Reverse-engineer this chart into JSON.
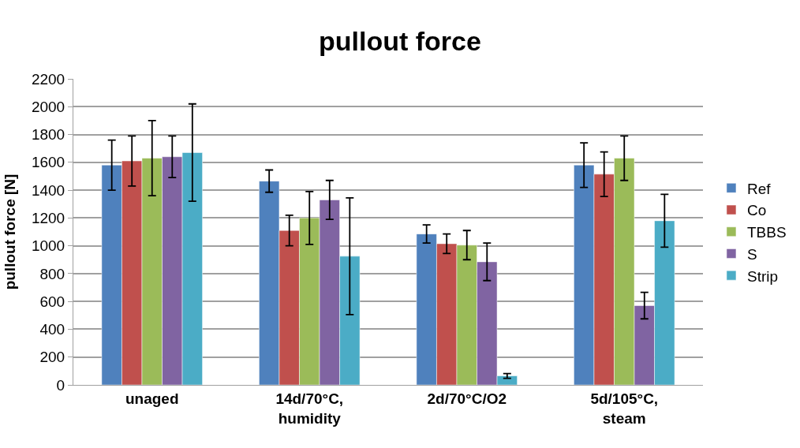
{
  "chart_data": {
    "type": "bar",
    "title": "pullout force",
    "ylabel": "pullout force [N]",
    "categories": [
      "unaged",
      "14d/70°C,\nhumidity",
      "2d/70°C/O2",
      "5d/105°C,\nsteam"
    ],
    "series": [
      {
        "name": "Ref",
        "color": "#4f81bd",
        "values": [
          1580,
          1465,
          1085,
          1580
        ],
        "errors": [
          180,
          80,
          65,
          160
        ]
      },
      {
        "name": "Co",
        "color": "#c0504d",
        "values": [
          1610,
          1110,
          1015,
          1515
        ],
        "errors": [
          180,
          110,
          70,
          160
        ]
      },
      {
        "name": "TBBS",
        "color": "#9bbb59",
        "values": [
          1630,
          1200,
          1005,
          1630
        ],
        "errors": [
          270,
          190,
          105,
          160
        ]
      },
      {
        "name": "S",
        "color": "#8064a2",
        "values": [
          1640,
          1330,
          885,
          570
        ],
        "errors": [
          150,
          140,
          135,
          95
        ]
      },
      {
        "name": "Strip",
        "color": "#4bacc6",
        "values": [
          1670,
          925,
          65,
          1180
        ],
        "errors": [
          350,
          420,
          17,
          190
        ]
      }
    ],
    "ylim": [
      0,
      2200
    ],
    "yticks": [
      0,
      200,
      400,
      600,
      800,
      1000,
      1200,
      1400,
      1600,
      1800,
      2000,
      2200
    ],
    "grid": "y",
    "legend": "right"
  }
}
